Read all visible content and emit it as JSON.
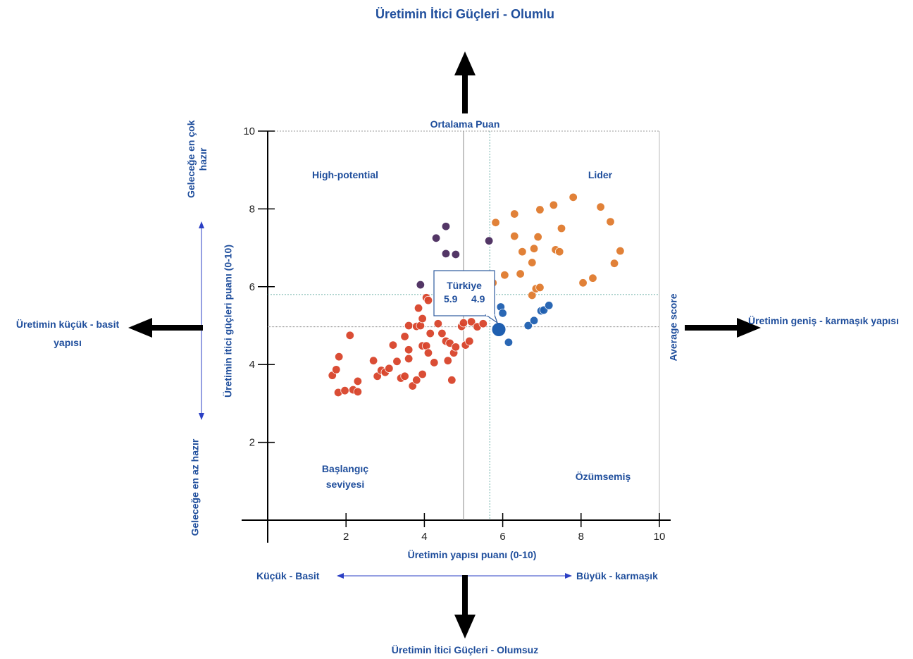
{
  "colors": {
    "text": "#1f4e9c",
    "red": "#d9442b",
    "orange": "#e07b2e",
    "purple": "#4a2c5e",
    "blue": "#1f5fb0",
    "grid": "#6fb1a8",
    "arrow": "#000000"
  },
  "labels": {
    "top_title": "Üretimin İtici Güçleri - Olumlu",
    "bottom_title": "Üretimin İtici Güçleri - Olumsuz",
    "left_title_line1": "Üretimin küçük - basit",
    "left_title_line2": "yapısı",
    "right_title": "Üretimin geniş - karmaşık yapısı",
    "average_score_h": "Ortalama Puan",
    "average_score_v": "Average score",
    "y_top_note_line1": "Geleceğe en çok",
    "y_top_note_line2": "hazır",
    "y_bottom_note": "Geleceğe en az hazır",
    "x_left_note": "Küçük - Basit",
    "x_right_note": "Büyük - karmaşık",
    "quad_top_left": "High-potential",
    "quad_top_right": "Lider",
    "quad_bottom_left_line1": "Başlangıç",
    "quad_bottom_left_line2": "seviyesi",
    "quad_bottom_right": "Özümsemiş",
    "callout_name": "Türkiye",
    "callout_x": "5.9",
    "callout_y": "4.9"
  },
  "chart_data": {
    "type": "scatter",
    "title": "",
    "xlabel": "Üretimin yapısı puanı  (0-10)",
    "ylabel": "Üretimin itici güçleri puanı (0-10)",
    "xlim": [
      0,
      10
    ],
    "ylim": [
      0,
      10
    ],
    "x_ticks": [
      "2",
      "4",
      "6",
      "8",
      "10"
    ],
    "y_ticks": [
      "2",
      "4",
      "6",
      "8",
      "10"
    ],
    "average_lines": {
      "x_solid": 5.0,
      "y_solid": 4.97,
      "x_dotted": 5.67,
      "y_dotted": 5.8
    },
    "highlight": {
      "name": "Türkiye",
      "x": 5.9,
      "y": 4.9
    },
    "series": [
      {
        "group": "Başlangıç seviyesi",
        "color": "#d9442b",
        "points": [
          [
            1.65,
            3.72
          ],
          [
            1.75,
            3.87
          ],
          [
            1.82,
            4.2
          ],
          [
            1.8,
            3.28
          ],
          [
            1.97,
            3.33
          ],
          [
            2.18,
            3.35
          ],
          [
            2.3,
            3.3
          ],
          [
            2.3,
            3.57
          ],
          [
            2.1,
            4.75
          ],
          [
            2.7,
            4.1
          ],
          [
            2.8,
            3.7
          ],
          [
            2.9,
            3.85
          ],
          [
            3.0,
            3.8
          ],
          [
            3.1,
            3.9
          ],
          [
            3.3,
            4.08
          ],
          [
            3.2,
            4.5
          ],
          [
            3.4,
            3.65
          ],
          [
            3.5,
            3.7
          ],
          [
            3.6,
            4.15
          ],
          [
            3.6,
            4.38
          ],
          [
            3.7,
            3.45
          ],
          [
            3.8,
            3.6
          ],
          [
            3.95,
            3.75
          ],
          [
            3.5,
            4.72
          ],
          [
            3.6,
            5.0
          ],
          [
            3.8,
            4.98
          ],
          [
            3.9,
            5.0
          ],
          [
            3.85,
            5.45
          ],
          [
            3.95,
            5.18
          ],
          [
            4.05,
            5.72
          ],
          [
            4.1,
            5.65
          ],
          [
            3.95,
            4.48
          ],
          [
            4.05,
            4.48
          ],
          [
            4.15,
            4.8
          ],
          [
            4.25,
            4.05
          ],
          [
            4.35,
            5.05
          ],
          [
            4.45,
            4.8
          ],
          [
            4.55,
            4.6
          ],
          [
            4.6,
            4.1
          ],
          [
            4.65,
            4.55
          ],
          [
            4.75,
            4.3
          ],
          [
            4.8,
            4.45
          ],
          [
            4.7,
            3.6
          ],
          [
            4.95,
            4.98
          ],
          [
            5.0,
            5.07
          ],
          [
            5.05,
            4.5
          ],
          [
            5.15,
            4.6
          ],
          [
            5.2,
            5.1
          ],
          [
            5.35,
            4.97
          ],
          [
            5.5,
            5.05
          ],
          [
            4.1,
            4.3
          ]
        ]
      },
      {
        "group": "Lider",
        "color": "#e07b2e",
        "points": [
          [
            5.82,
            7.65
          ],
          [
            5.75,
            6.1
          ],
          [
            6.05,
            6.3
          ],
          [
            6.3,
            7.87
          ],
          [
            6.3,
            7.3
          ],
          [
            6.5,
            6.9
          ],
          [
            6.45,
            6.33
          ],
          [
            6.75,
            6.62
          ],
          [
            6.8,
            6.98
          ],
          [
            6.9,
            7.28
          ],
          [
            6.95,
            7.98
          ],
          [
            7.3,
            8.1
          ],
          [
            7.35,
            6.95
          ],
          [
            7.45,
            6.9
          ],
          [
            7.5,
            7.5
          ],
          [
            7.8,
            8.3
          ],
          [
            8.05,
            6.1
          ],
          [
            8.3,
            6.22
          ],
          [
            8.5,
            8.05
          ],
          [
            8.75,
            7.67
          ],
          [
            8.85,
            6.6
          ],
          [
            9.0,
            6.92
          ],
          [
            6.75,
            5.78
          ],
          [
            6.85,
            5.95
          ],
          [
            6.95,
            5.98
          ]
        ]
      },
      {
        "group": "High-potential",
        "color": "#4a2c5e",
        "points": [
          [
            4.3,
            7.25
          ],
          [
            4.55,
            7.55
          ],
          [
            4.55,
            6.85
          ],
          [
            4.8,
            6.83
          ],
          [
            5.65,
            7.18
          ],
          [
            3.9,
            6.05
          ]
        ]
      },
      {
        "group": "Özümsemiş",
        "color": "#1f5fb0",
        "points": [
          [
            5.95,
            5.48
          ],
          [
            6.0,
            5.32
          ],
          [
            6.15,
            4.57
          ],
          [
            6.65,
            5.0
          ],
          [
            6.8,
            5.13
          ],
          [
            6.98,
            5.38
          ],
          [
            7.05,
            5.4
          ],
          [
            7.18,
            5.52
          ]
        ]
      }
    ]
  }
}
